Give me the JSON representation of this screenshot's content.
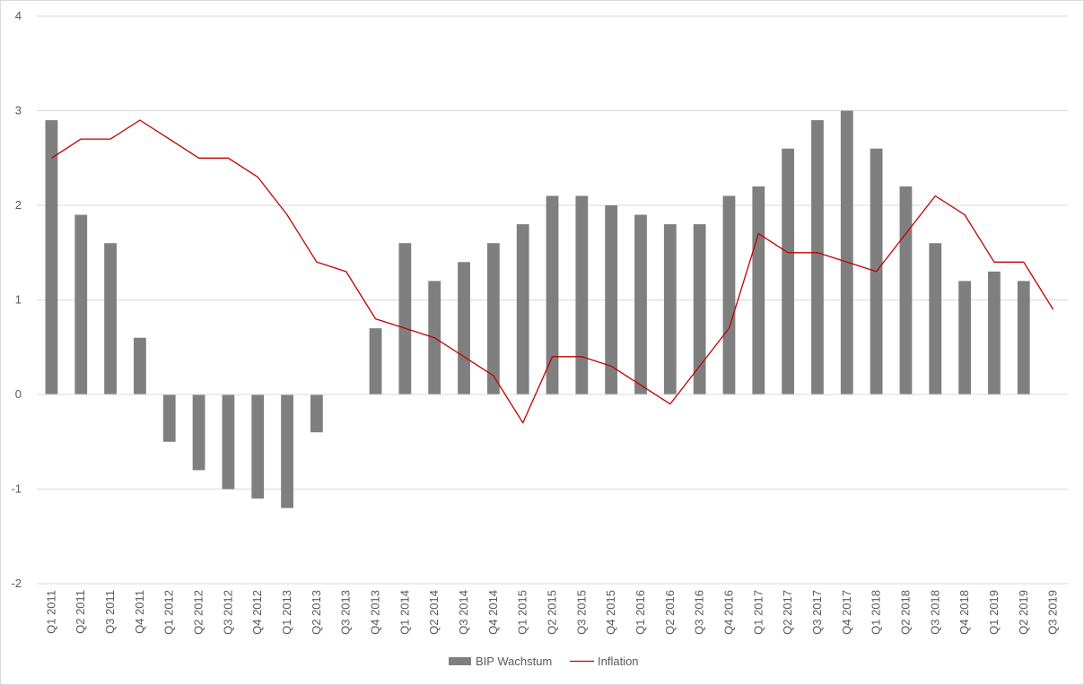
{
  "chart_data": {
    "type": "bar",
    "title": "",
    "xlabel": "",
    "ylabel": "",
    "ylim": [
      -2,
      4
    ],
    "yticks": [
      -2,
      -1,
      0,
      1,
      2,
      3,
      4
    ],
    "grid": true,
    "legend_position": "bottom",
    "categories": [
      "Q1 2011",
      "Q2 2011",
      "Q3 2011",
      "Q4 2011",
      "Q1 2012",
      "Q2 2012",
      "Q3 2012",
      "Q4 2012",
      "Q1 2013",
      "Q2 2013",
      "Q3 2013",
      "Q4 2013",
      "Q1 2014",
      "Q2 2014",
      "Q3 2014",
      "Q4 2014",
      "Q1 2015",
      "Q2 2015",
      "Q3 2015",
      "Q4 2015",
      "Q1 2016",
      "Q2 2016",
      "Q3 2016",
      "Q4 2016",
      "Q1 2017",
      "Q2 2017",
      "Q3 2017",
      "Q4 2017",
      "Q1 2018",
      "Q2 2018",
      "Q3 2018",
      "Q4 2018",
      "Q1 2019",
      "Q2 2019",
      "Q3 2019"
    ],
    "series": [
      {
        "name": "BIP Wachstum",
        "type": "bar",
        "color": "#7f7f7f",
        "values": [
          2.9,
          1.9,
          1.6,
          0.6,
          -0.5,
          -0.8,
          -1.0,
          -1.1,
          -1.2,
          -0.4,
          null,
          0.7,
          1.6,
          1.2,
          1.4,
          1.6,
          1.8,
          2.1,
          2.1,
          2.0,
          1.9,
          1.8,
          1.8,
          2.1,
          2.2,
          2.6,
          2.9,
          3.0,
          2.6,
          2.2,
          1.6,
          1.2,
          1.3,
          1.2,
          null
        ]
      },
      {
        "name": "Inflation",
        "type": "line",
        "color": "#c00000",
        "values": [
          2.5,
          2.7,
          2.7,
          2.9,
          2.7,
          2.5,
          2.5,
          2.3,
          1.9,
          1.4,
          1.3,
          0.8,
          0.7,
          0.6,
          0.4,
          0.2,
          -0.3,
          0.4,
          0.4,
          0.3,
          0.1,
          -0.1,
          0.3,
          0.7,
          1.7,
          1.5,
          1.5,
          1.4,
          1.3,
          1.7,
          2.1,
          1.9,
          1.4,
          1.4,
          0.9
        ]
      }
    ]
  }
}
